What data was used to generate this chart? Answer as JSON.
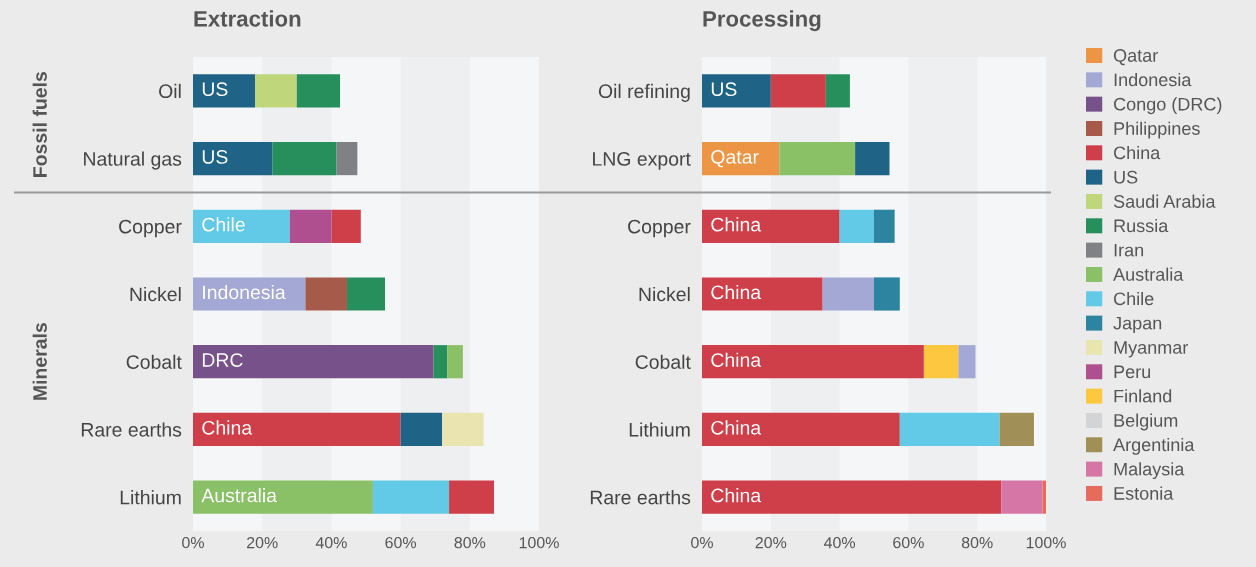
{
  "chart_data": [
    {
      "type": "bar",
      "orientation": "horizontal",
      "title": "Extraction",
      "categories": [
        "Oil",
        "Natural gas",
        "Copper",
        "Nickel",
        "Cobalt",
        "Rare earths",
        "Lithium"
      ],
      "series": [
        {
          "name": "Qatar",
          "color": "#ec9545",
          "values": [
            null,
            null,
            null,
            null,
            null,
            null,
            null
          ],
          "base": [
            null,
            null,
            null,
            null,
            null,
            null,
            null
          ]
        },
        {
          "name": "Indonesia",
          "color": "#a4a8d4",
          "values": [
            null,
            null,
            null,
            32.5,
            null,
            null,
            null
          ],
          "base": [
            null,
            null,
            null,
            0,
            null,
            null,
            null
          ]
        },
        {
          "name": "Congo (DRC)",
          "color": "#77528a",
          "values": [
            null,
            null,
            null,
            null,
            69.5,
            null,
            null
          ],
          "base": [
            null,
            null,
            null,
            null,
            0,
            null,
            null
          ]
        },
        {
          "name": "Philippines",
          "color": "#a65b4a",
          "values": [
            null,
            null,
            null,
            12,
            null,
            null,
            null
          ],
          "base": [
            null,
            null,
            null,
            32.5,
            null,
            null,
            null
          ]
        },
        {
          "name": "China",
          "color": "#cf3f4a",
          "values": [
            null,
            null,
            8.5,
            null,
            null,
            60,
            13
          ],
          "base": [
            null,
            null,
            40,
            null,
            null,
            0,
            74
          ]
        },
        {
          "name": "US",
          "color": "#1f6386",
          "values": [
            18,
            23,
            null,
            null,
            null,
            12,
            null
          ],
          "base": [
            0,
            0,
            null,
            null,
            null,
            60,
            null
          ]
        },
        {
          "name": "Saudi Arabia",
          "color": "#bfd67a",
          "values": [
            12,
            null,
            null,
            null,
            null,
            null,
            null
          ],
          "base": [
            18,
            null,
            null,
            null,
            null,
            null,
            null
          ]
        },
        {
          "name": "Russia",
          "color": "#268f5c",
          "values": [
            12.5,
            18.5,
            null,
            11,
            4,
            null,
            null
          ],
          "base": [
            30,
            23,
            null,
            44.5,
            69.5,
            null,
            null
          ]
        },
        {
          "name": "Iran",
          "color": "#808184",
          "values": [
            null,
            6,
            null,
            null,
            null,
            null,
            null
          ],
          "base": [
            null,
            41.5,
            null,
            null,
            null,
            null,
            null
          ]
        },
        {
          "name": "Australia",
          "color": "#8ac066",
          "values": [
            null,
            null,
            null,
            null,
            4.5,
            null,
            52
          ],
          "base": [
            null,
            null,
            null,
            null,
            73.5,
            null,
            0
          ]
        },
        {
          "name": "Chile",
          "color": "#62c9e7",
          "values": [
            null,
            null,
            28,
            null,
            null,
            null,
            22
          ],
          "base": [
            null,
            null,
            0,
            null,
            null,
            null,
            52
          ]
        },
        {
          "name": "Japan",
          "color": "#2d84a0",
          "values": [
            null,
            null,
            null,
            null,
            null,
            null,
            null
          ],
          "base": [
            null,
            null,
            null,
            null,
            null,
            null,
            null
          ]
        },
        {
          "name": "Myanmar",
          "color": "#eae4b0",
          "values": [
            null,
            null,
            null,
            null,
            null,
            12,
            null
          ],
          "base": [
            null,
            null,
            null,
            null,
            null,
            72,
            null
          ]
        },
        {
          "name": "Peru",
          "color": "#b04f8f",
          "values": [
            null,
            null,
            12,
            null,
            null,
            null,
            null
          ],
          "base": [
            null,
            null,
            28,
            null,
            null,
            null,
            null
          ]
        },
        {
          "name": "Finland",
          "color": "#fdc73f",
          "values": [
            null,
            null,
            null,
            null,
            null,
            null,
            null
          ],
          "base": [
            null,
            null,
            null,
            null,
            null,
            null,
            null
          ]
        },
        {
          "name": "Belgium",
          "color": "#d3d4d6",
          "values": [
            null,
            null,
            null,
            null,
            null,
            null,
            null
          ],
          "base": [
            null,
            null,
            null,
            null,
            null,
            null,
            null
          ]
        },
        {
          "name": "Argentinia",
          "color": "#a08f57",
          "values": [
            null,
            null,
            null,
            null,
            null,
            null,
            null
          ],
          "base": [
            null,
            null,
            null,
            null,
            null,
            null,
            null
          ]
        },
        {
          "name": "Malaysia",
          "color": "#d676a7",
          "values": [
            null,
            null,
            null,
            null,
            null,
            null,
            null
          ],
          "base": [
            null,
            null,
            null,
            null,
            null,
            null,
            null
          ]
        },
        {
          "name": "Estonia",
          "color": "#e56b5d",
          "values": [
            null,
            null,
            null,
            null,
            null,
            null,
            null
          ],
          "base": [
            null,
            null,
            null,
            null,
            null,
            null,
            null
          ]
        }
      ],
      "xlim": [
        0,
        100
      ],
      "xticks": [
        {
          "value": 0,
          "label": "0%"
        },
        {
          "value": 20,
          "label": "20%"
        },
        {
          "value": 40,
          "label": "40%"
        },
        {
          "value": 60,
          "label": "60%"
        },
        {
          "value": 80,
          "label": "80%"
        },
        {
          "value": 100,
          "label": "100%"
        }
      ],
      "bands": [
        {
          "axis": "x",
          "from": 20,
          "to": 40,
          "color": "#eeeff1"
        },
        {
          "axis": "x",
          "from": 60,
          "to": 80,
          "color": "#eeeff1"
        }
      ],
      "legend": "right",
      "annotations": [
        "Fossil fuels",
        "Minerals",
        "US",
        "US",
        "Chile",
        "Indonesia",
        "DRC",
        "China",
        "Australia"
      ]
    },
    {
      "type": "bar",
      "orientation": "horizontal",
      "title": "Processing",
      "categories": [
        "Oil refining",
        "LNG export",
        "Copper",
        "Nickel",
        "Cobalt",
        "Lithium",
        "Rare earths"
      ],
      "series": [
        {
          "color": "#ec9545",
          "values": [
            null,
            22.5,
            null,
            null,
            null,
            null,
            null
          ],
          "base": [
            null,
            0,
            null,
            null,
            null,
            null,
            null
          ]
        },
        {
          "color": "#a4a8d4",
          "values": [
            null,
            null,
            null,
            15,
            5,
            null,
            null
          ],
          "base": [
            null,
            null,
            null,
            35,
            74.5,
            null,
            null
          ]
        },
        {
          "color": "#cf3f4a",
          "values": [
            16,
            null,
            40,
            35,
            64.5,
            57.5,
            87
          ],
          "base": [
            20,
            null,
            0,
            0,
            0,
            0,
            0
          ]
        },
        {
          "color": "#1f6386",
          "values": [
            20,
            10,
            null,
            null,
            null,
            null,
            null
          ],
          "base": [
            0,
            44.5,
            null,
            null,
            null,
            null,
            null
          ]
        },
        {
          "color": "#268f5c",
          "values": [
            7,
            null,
            null,
            null,
            null,
            null,
            null
          ],
          "base": [
            36,
            null,
            null,
            null,
            null,
            null,
            null
          ]
        },
        {
          "color": "#8ac066",
          "values": [
            null,
            22,
            null,
            null,
            null,
            null,
            null
          ],
          "base": [
            null,
            22.5,
            null,
            null,
            null,
            null,
            null
          ]
        },
        {
          "color": "#62c9e7",
          "values": [
            null,
            null,
            10,
            null,
            null,
            29,
            null
          ],
          "base": [
            null,
            null,
            40,
            null,
            null,
            57.5,
            null
          ]
        },
        {
          "color": "#2d84a0",
          "values": [
            null,
            null,
            6,
            7.5,
            null,
            null,
            null
          ],
          "base": [
            null,
            null,
            50,
            50,
            null,
            null,
            null
          ]
        },
        {
          "color": "#fdc73f",
          "values": [
            null,
            null,
            null,
            null,
            10,
            null,
            null
          ],
          "base": [
            null,
            null,
            null,
            null,
            64.5,
            null,
            null
          ]
        },
        {
          "color": "#a08f57",
          "values": [
            null,
            null,
            null,
            null,
            null,
            10,
            null
          ],
          "base": [
            null,
            null,
            null,
            null,
            null,
            86.5,
            null
          ]
        },
        {
          "color": "#d676a7",
          "values": [
            null,
            null,
            null,
            null,
            null,
            null,
            12
          ],
          "base": [
            null,
            null,
            null,
            null,
            null,
            null,
            87
          ]
        },
        {
          "color": "#e56b5d",
          "values": [
            null,
            null,
            null,
            null,
            null,
            null,
            1
          ],
          "base": [
            null,
            null,
            null,
            null,
            null,
            null,
            99
          ]
        }
      ],
      "xlim": [
        0,
        100
      ],
      "xticks": [
        {
          "value": 0,
          "label": "0%"
        },
        {
          "value": 20,
          "label": "20%"
        },
        {
          "value": 40,
          "label": "40%"
        },
        {
          "value": 60,
          "label": "60%"
        },
        {
          "value": 80,
          "label": "80%"
        },
        {
          "value": 100,
          "label": "100%"
        }
      ],
      "bands": [
        {
          "axis": "x",
          "from": 20,
          "to": 40,
          "color": "#eeeff1"
        },
        {
          "axis": "x",
          "from": 60,
          "to": 80,
          "color": "#eeeff1"
        }
      ],
      "annotations": [
        "US",
        "Qatar",
        "China",
        "China",
        "China",
        "China",
        "China"
      ]
    }
  ]
}
